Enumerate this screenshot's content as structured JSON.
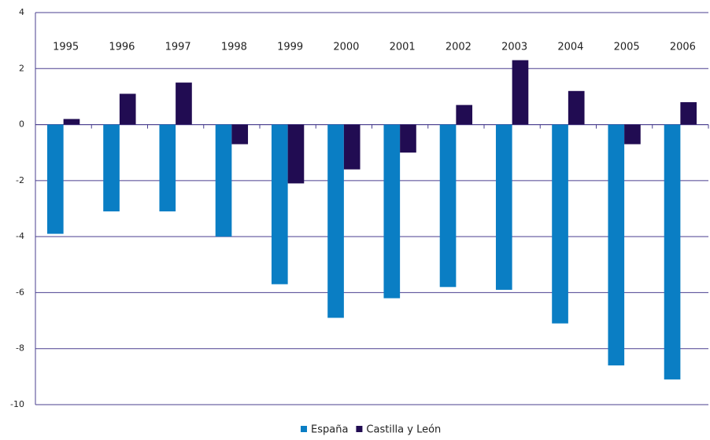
{
  "chart_data": {
    "type": "bar",
    "categories": [
      "1995",
      "1996",
      "1997",
      "1998",
      "1999",
      "2000",
      "2001",
      "2002",
      "2003",
      "2004",
      "2005",
      "2006"
    ],
    "series": [
      {
        "name": "España",
        "color": "#0a7ec4",
        "values": [
          -3.9,
          -3.1,
          -3.1,
          -4.0,
          -5.7,
          -6.9,
          -6.2,
          -5.8,
          -5.9,
          -7.1,
          -8.6,
          -9.1
        ]
      },
      {
        "name": "Castilla y León",
        "color": "#210c52",
        "values": [
          0.2,
          1.1,
          1.5,
          -0.7,
          -2.1,
          -1.6,
          -1.0,
          0.7,
          2.3,
          1.2,
          -0.7,
          0.8
        ]
      }
    ],
    "ylim": [
      -10,
      4
    ],
    "yticks": [
      -10,
      -8,
      -6,
      -4,
      -2,
      0,
      2,
      4
    ],
    "grid": true,
    "legend": "bottom"
  }
}
